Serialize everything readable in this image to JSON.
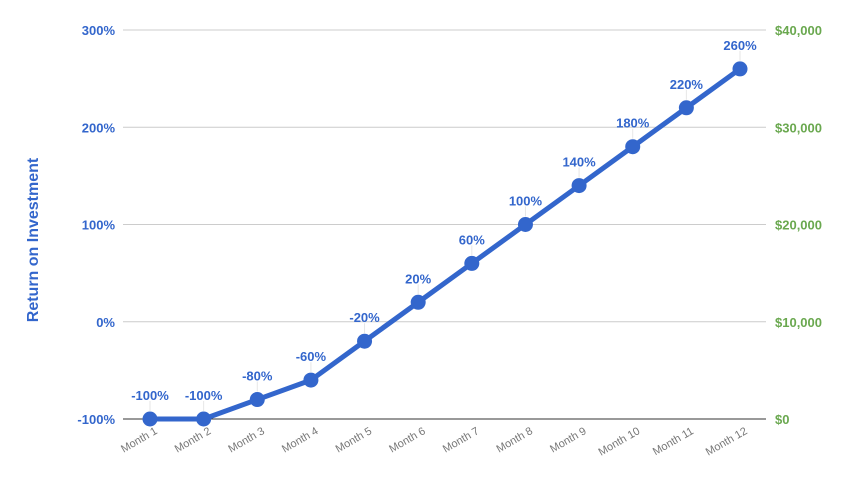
{
  "colors": {
    "series": "#3366cc",
    "left_axis": "#3366cc",
    "right_axis": "#6aa84f",
    "grid": "#cccccc",
    "baseline": "#333333",
    "xtick": "#777777"
  },
  "chart_data": {
    "type": "line",
    "title": "",
    "xlabel": "",
    "ylabel": "Return on Investment",
    "y2label": "",
    "categories": [
      "Month 1",
      "Month 2",
      "Month 3",
      "Month 4",
      "Month 5",
      "Month 6",
      "Month 7",
      "Month 8",
      "Month 9",
      "Month 10",
      "Month 11",
      "Month 12"
    ],
    "series": [
      {
        "name": "Return on Investment",
        "axis": "left",
        "values": [
          -100,
          -100,
          -80,
          -60,
          -20,
          20,
          60,
          100,
          140,
          180,
          220,
          260
        ],
        "labels": [
          "-100%",
          "-100%",
          "-80%",
          "-60%",
          "-20%",
          "20%",
          "60%",
          "100%",
          "140%",
          "180%",
          "220%",
          "260%"
        ]
      }
    ],
    "ylim": [
      -100,
      300
    ],
    "y_ticks": [
      "300%",
      "200%",
      "100%",
      "0%",
      "-100%"
    ],
    "y_tick_values": [
      300,
      200,
      100,
      0,
      -100
    ],
    "y2lim": [
      0,
      40000
    ],
    "y2_ticks": [
      "$40,000",
      "$30,000",
      "$20,000",
      "$10,000",
      "$0"
    ],
    "y2_tick_values": [
      40000,
      30000,
      20000,
      10000,
      0
    ],
    "grid": true,
    "legend": "none",
    "data_labels": true
  }
}
